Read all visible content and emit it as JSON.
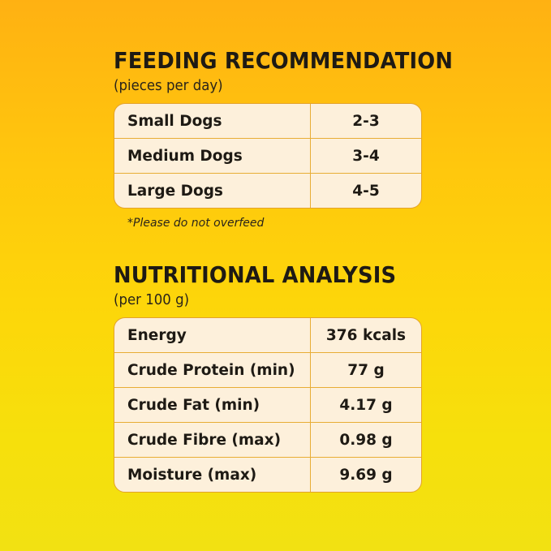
{
  "feeding": {
    "title": "FEEDING RECOMMENDATION",
    "subtitle": "(pieces per day)",
    "rows": [
      {
        "label": "Small Dogs",
        "value": "2-3"
      },
      {
        "label": "Medium Dogs",
        "value": "3-4"
      },
      {
        "label": "Large Dogs",
        "value": "4-5"
      }
    ],
    "note": "*Please do not overfeed"
  },
  "nutrition": {
    "title": "NUTRITIONAL ANALYSIS",
    "subtitle": "(per 100 g)",
    "rows": [
      {
        "label": "Energy",
        "value": "376 kcals"
      },
      {
        "label": "Crude Protein (min)",
        "value": "77 g"
      },
      {
        "label": "Crude Fat (min)",
        "value": "4.17 g"
      },
      {
        "label": "Crude Fibre (max)",
        "value": "0.98 g"
      },
      {
        "label": "Moisture (max)",
        "value": "9.69 g"
      }
    ]
  },
  "colors": {
    "background_top": "#ffb112",
    "background_bottom": "#f2e112",
    "table_fill": "#fdf0db",
    "table_border": "#e3a22a",
    "text": "#1e1a14"
  }
}
